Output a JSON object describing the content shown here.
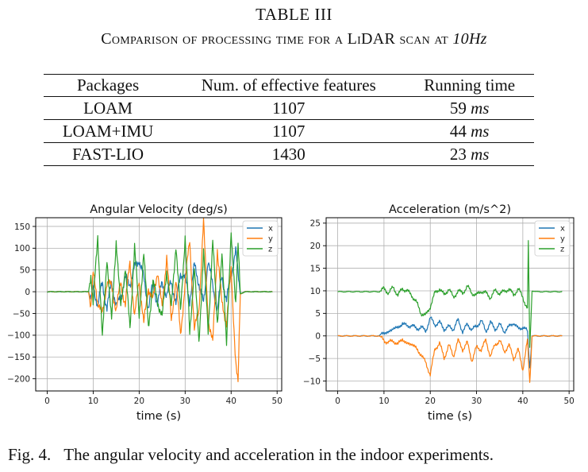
{
  "table": {
    "label": "TABLE III",
    "caption_prefix": "Comparison of processing time for a LiDAR scan at ",
    "caption_math": "10Hz",
    "headers": [
      "Packages",
      "Num. of effective features",
      "Running time"
    ],
    "rows": [
      {
        "package": "LOAM",
        "features": "1107",
        "time_value": "59",
        "time_unit": "ms"
      },
      {
        "package": "LOAM+IMU",
        "features": "1107",
        "time_value": "44",
        "time_unit": "ms"
      },
      {
        "package": "FAST-LIO",
        "features": "1430",
        "time_value": "23",
        "time_unit": "ms"
      }
    ]
  },
  "figure": {
    "label": "Fig. 4.",
    "caption": "The angular velocity and acceleration in the indoor experiments."
  },
  "colors": {
    "x": "#1f77b4",
    "y": "#ff7f0e",
    "z": "#2ca02c",
    "grid": "#b0b0b0",
    "axis": "#000000"
  },
  "chart_data": [
    {
      "type": "line",
      "title": "Angular Velocity (deg/s)",
      "xlabel": "time (s)",
      "ylabel": "",
      "xlim": [
        -2.5,
        51
      ],
      "ylim": [
        -228,
        170
      ],
      "xticks": [
        0,
        10,
        20,
        30,
        40,
        50
      ],
      "yticks": [
        -200,
        -150,
        -100,
        -50,
        0,
        50,
        100,
        150
      ],
      "legend": [
        "x",
        "y",
        "z"
      ],
      "legend_position": "top-right",
      "grid": true,
      "series": [
        {
          "name": "x",
          "x": [
            0,
            9,
            9.5,
            10,
            11,
            12,
            13,
            14,
            15,
            16,
            17,
            18,
            19,
            20,
            21,
            22,
            23,
            24,
            25,
            26,
            27,
            28,
            29,
            30,
            31,
            32,
            33,
            34,
            35,
            36,
            37,
            38,
            39,
            40,
            41,
            41.5,
            42,
            43,
            45,
            49
          ],
          "values": [
            0,
            0,
            -20,
            10,
            -30,
            20,
            -40,
            25,
            -35,
            -10,
            30,
            20,
            55,
            75,
            30,
            -35,
            15,
            -25,
            20,
            -10,
            25,
            -30,
            45,
            30,
            -20,
            60,
            20,
            -30,
            75,
            10,
            -40,
            35,
            -20,
            40,
            95,
            40,
            -5,
            0,
            0,
            0
          ]
        },
        {
          "name": "y",
          "x": [
            0,
            9,
            9.5,
            10,
            11,
            12,
            13,
            14,
            15,
            16,
            17,
            18,
            19,
            20,
            21,
            22,
            23,
            24,
            25,
            26,
            27,
            28,
            29,
            30,
            31,
            32,
            33,
            34,
            35,
            36,
            37,
            38,
            39,
            40,
            41,
            41.5,
            42,
            43,
            45,
            49
          ],
          "values": [
            0,
            0,
            -35,
            40,
            -20,
            -55,
            25,
            10,
            -40,
            20,
            -30,
            70,
            -60,
            30,
            -75,
            10,
            -20,
            50,
            -40,
            85,
            -70,
            30,
            -100,
            20,
            120,
            -90,
            -40,
            160,
            -60,
            -120,
            100,
            -30,
            -70,
            50,
            -160,
            -215,
            -5,
            0,
            0,
            0
          ]
        },
        {
          "name": "z",
          "x": [
            0,
            9,
            9.5,
            10,
            11,
            12,
            13,
            14,
            15,
            16,
            17,
            18,
            19,
            20,
            21,
            22,
            23,
            24,
            25,
            26,
            27,
            28,
            29,
            30,
            31,
            32,
            33,
            34,
            35,
            36,
            37,
            38,
            39,
            40,
            41,
            41.5,
            42,
            43,
            45,
            49
          ],
          "values": [
            0,
            0,
            40,
            -30,
            130,
            -110,
            80,
            -70,
            120,
            -40,
            60,
            -90,
            110,
            -60,
            90,
            -80,
            20,
            -20,
            -60,
            50,
            -40,
            110,
            -50,
            130,
            -100,
            60,
            -120,
            95,
            -90,
            115,
            -70,
            80,
            -110,
            125,
            -20,
            110,
            -5,
            0,
            0,
            0
          ]
        }
      ]
    },
    {
      "type": "line",
      "title": "Acceleration (m/s^2)",
      "xlabel": "time (s)",
      "ylabel": "",
      "xlim": [
        -2.5,
        51
      ],
      "ylim": [
        -12.2,
        26.2
      ],
      "xticks": [
        0,
        10,
        20,
        30,
        40,
        50
      ],
      "yticks": [
        -10,
        -5,
        0,
        5,
        10,
        15,
        20,
        25
      ],
      "legend": [
        "x",
        "y",
        "z"
      ],
      "legend_position": "top-right",
      "grid": true,
      "series": [
        {
          "name": "x",
          "x": [
            0,
            9,
            10,
            11,
            12,
            13,
            14,
            15,
            16,
            17,
            18,
            19,
            20,
            21,
            22,
            23,
            24,
            25,
            26,
            27,
            28,
            29,
            30,
            31,
            32,
            33,
            34,
            35,
            36,
            37,
            38,
            39,
            40,
            41,
            41.5,
            42,
            43,
            45,
            48.5
          ],
          "values": [
            0,
            0,
            1,
            0.5,
            2,
            1.5,
            3,
            2,
            2.5,
            1.5,
            2,
            1,
            4,
            2.5,
            3,
            1.5,
            2,
            1.5,
            3.5,
            1,
            2.5,
            1.5,
            2,
            3.5,
            1,
            3,
            1.5,
            2.5,
            1,
            2,
            3,
            1.5,
            2,
            1,
            -7,
            0,
            0,
            0,
            0
          ]
        },
        {
          "name": "y",
          "x": [
            0,
            9,
            10,
            11,
            12,
            13,
            14,
            15,
            16,
            17,
            18,
            19,
            20,
            21,
            22,
            23,
            24,
            25,
            26,
            27,
            28,
            29,
            30,
            31,
            32,
            33,
            34,
            35,
            36,
            37,
            38,
            39,
            40,
            41,
            41.5,
            42,
            43,
            45,
            48.5
          ],
          "values": [
            0,
            0,
            -1,
            -1.5,
            -1,
            -2,
            -0.5,
            -2,
            -1.5,
            -3,
            -4,
            -6,
            -8.5,
            -3,
            -1.5,
            -5,
            -2,
            -4.5,
            -1,
            -3,
            -1.5,
            -5.5,
            -2.5,
            -3,
            -1,
            -4.5,
            -2,
            -1,
            -3.5,
            -2,
            -5,
            -3,
            -7.5,
            -1,
            -10.5,
            0,
            0,
            0,
            0
          ]
        },
        {
          "name": "z",
          "x": [
            0,
            9,
            10,
            11,
            12,
            13,
            14,
            15,
            16,
            17,
            18,
            19,
            20,
            21,
            22,
            23,
            24,
            25,
            26,
            27,
            28,
            29,
            30,
            31,
            32,
            33,
            34,
            35,
            36,
            37,
            38,
            39,
            40,
            41,
            41.2,
            41.5,
            42,
            43,
            45,
            48.5
          ],
          "values": [
            9.8,
            9.8,
            10.5,
            9.5,
            10.8,
            9,
            10.5,
            10,
            9,
            7.5,
            5,
            4.5,
            6.5,
            9.5,
            10.5,
            9,
            10.5,
            8.5,
            10,
            9.5,
            11,
            9.5,
            9,
            10,
            9.5,
            8.5,
            10,
            9.5,
            9.8,
            10.5,
            9,
            10.5,
            8.5,
            6,
            21,
            -3,
            10,
            9.8,
            9.8,
            9.8
          ]
        }
      ]
    }
  ]
}
